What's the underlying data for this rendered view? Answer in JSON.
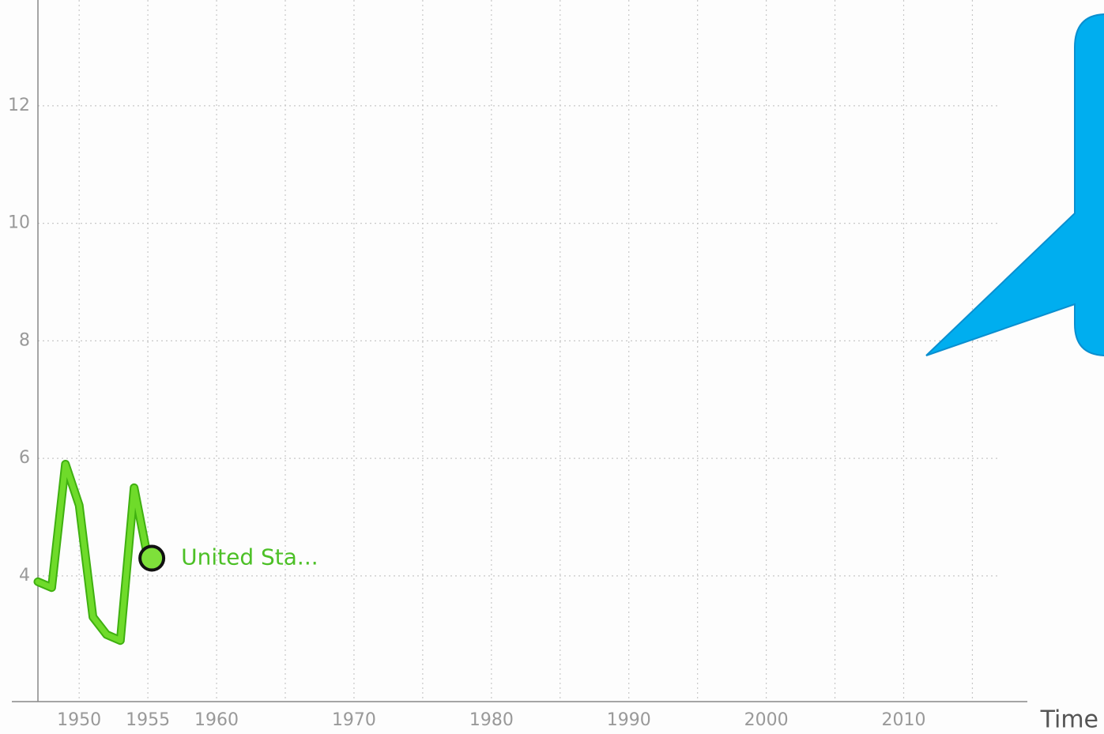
{
  "chart_data": {
    "type": "line",
    "x_label": "Time",
    "x": [
      1947,
      1948,
      1949,
      1950,
      1951,
      1952,
      1953,
      1954,
      1955
    ],
    "series": [
      {
        "name": "United Sta...",
        "color": "#6fdb2a",
        "values": [
          3.9,
          3.8,
          5.9,
          5.2,
          3.3,
          3.0,
          2.9,
          5.5,
          4.3
        ]
      }
    ],
    "xlim": [
      1947,
      2019
    ],
    "ylim": [
      1.86,
      13.8
    ],
    "xticks": [
      1950,
      1955,
      1960,
      1970,
      1980,
      1990,
      2000,
      2010
    ],
    "xgrid": [
      1950,
      1955,
      1960,
      1965,
      1970,
      1975,
      1980,
      1985,
      1990,
      1995,
      2000,
      2005,
      2010,
      2015
    ],
    "yticks": [
      4,
      6,
      8,
      10,
      12
    ],
    "grid": true
  }
}
